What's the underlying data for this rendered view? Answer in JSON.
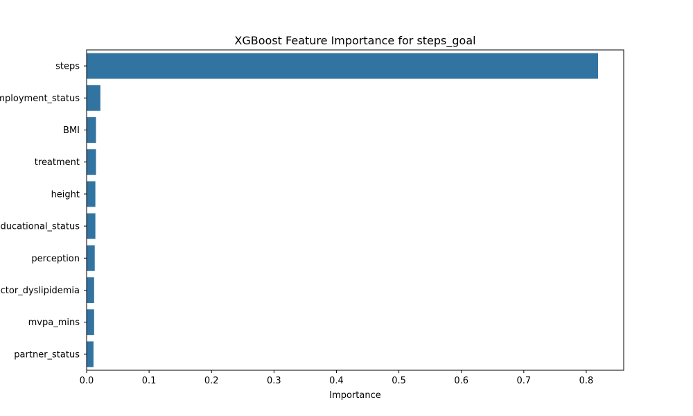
{
  "chart_data": {
    "type": "bar",
    "orientation": "horizontal",
    "title": "XGBoost Feature Importance for steps_goal",
    "xlabel": "Importance",
    "ylabel": "",
    "xlim": [
      0,
      0.86
    ],
    "xticks": [
      0.0,
      0.1,
      0.2,
      0.3,
      0.4,
      0.5,
      0.6,
      0.7,
      0.8
    ],
    "xtick_labels": [
      "0.0",
      "0.1",
      "0.2",
      "0.3",
      "0.4",
      "0.5",
      "0.6",
      "0.7",
      "0.8"
    ],
    "categories": [
      "steps",
      "employment_status",
      "BMI",
      "treatment",
      "height",
      "educational_status",
      "perception",
      "factor_dyslipidemia",
      "mvpa_mins",
      "partner_status"
    ],
    "values": [
      0.819,
      0.022,
      0.015,
      0.015,
      0.014,
      0.014,
      0.013,
      0.012,
      0.012,
      0.011
    ],
    "bar_color": "#3274a1",
    "grid": false,
    "legend": "none"
  }
}
